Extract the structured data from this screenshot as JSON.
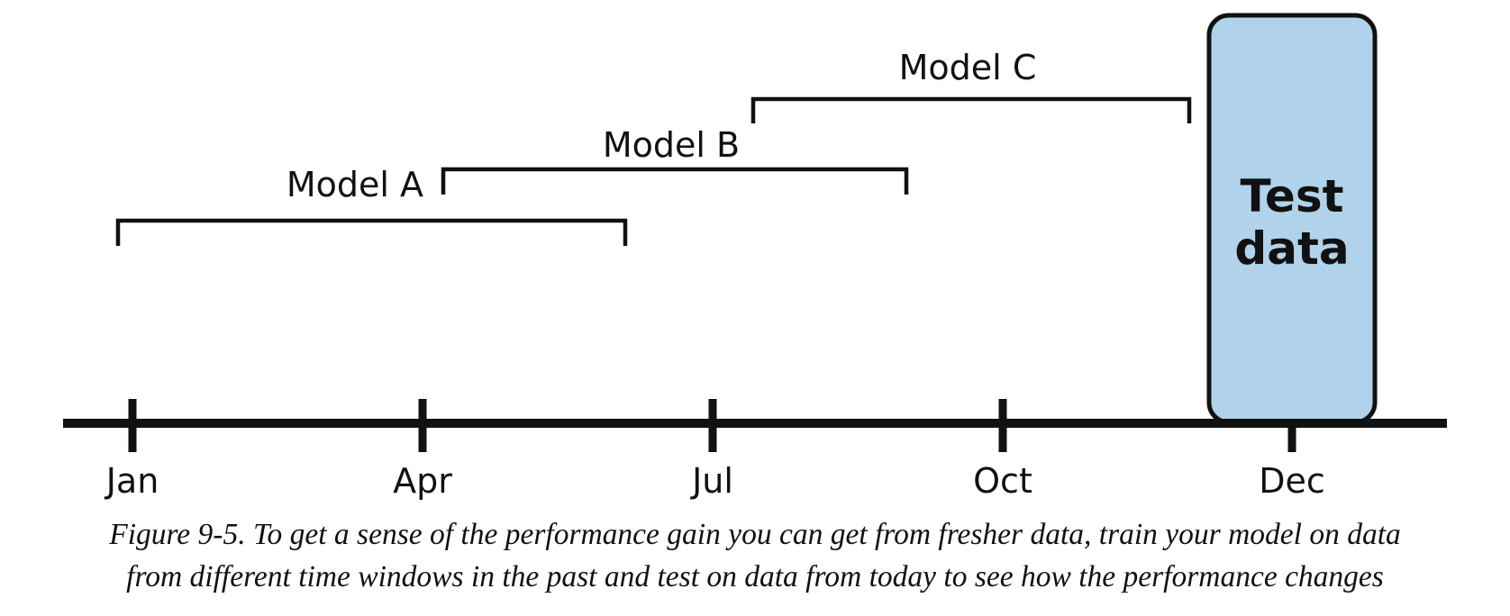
{
  "timeline": {
    "ticks": [
      "Jan",
      "Apr",
      "Jul",
      "Oct",
      "Dec"
    ]
  },
  "windows": [
    {
      "label": "Model A"
    },
    {
      "label": "Model B"
    },
    {
      "label": "Model C"
    }
  ],
  "test_box": {
    "line1": "Test",
    "line2": "data",
    "fill_color": "#b0d3eb"
  },
  "caption": {
    "line1": "Figure 9-5. To get a sense of the performance gain you can get from fresher data, train your model on data",
    "line2": "from different time windows in the past and test on data from today to see how the performance changes"
  }
}
